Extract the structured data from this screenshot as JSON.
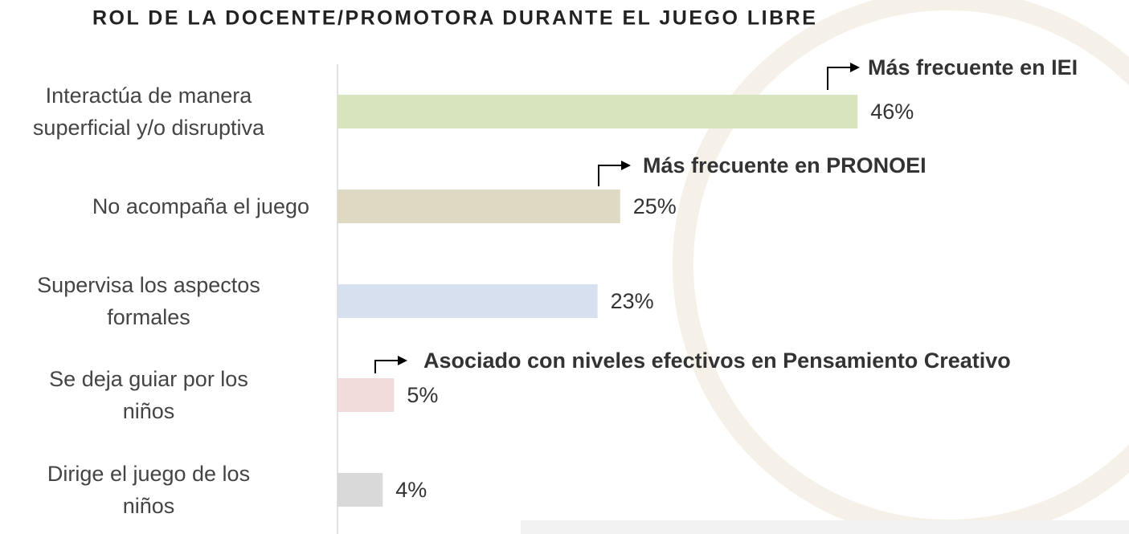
{
  "chart_data": {
    "type": "barh",
    "title": "ROL DE LA DOCENTE/PROMOTORA DURANTE EL JUEGO LIBRE",
    "categories": [
      "Interactúa de manera\nsuperficial y/o disruptiva",
      "No acompaña el juego",
      "Supervisa los aspectos\nformales",
      "Se deja guiar por los\nniños",
      "Dirige el juego de los\nniños"
    ],
    "values": [
      46,
      25,
      23,
      5,
      4
    ],
    "value_labels": [
      "46%",
      "25%",
      "23%",
      "5%",
      "4%"
    ],
    "colors": [
      "#d7e4bd",
      "#ddd9c3",
      "#d6e0ee",
      "#f2dcdb",
      "#d9d9d9"
    ],
    "annotations": [
      "Más frecuente en IEI",
      "Más frecuente en PRONOEI",
      "Asociado con niveles efectivos en Pensamiento Creativo"
    ]
  }
}
